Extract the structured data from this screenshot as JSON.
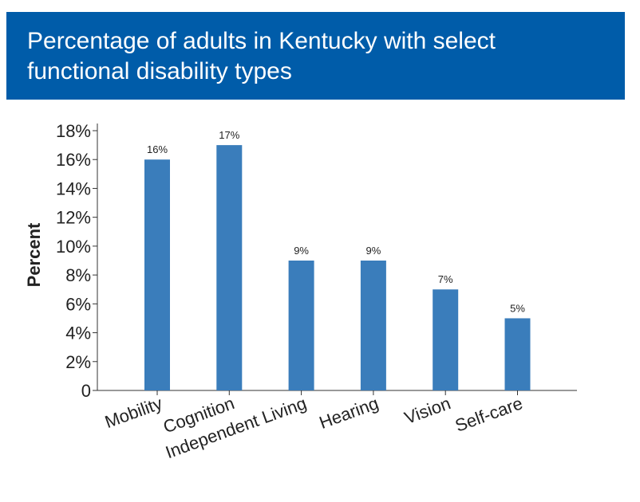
{
  "chart_data": {
    "type": "bar",
    "title": "Percentage of adults in Kentucky with select functional disability types",
    "y_label": "Percent",
    "categories": [
      "Mobility",
      "Cognition",
      "Independent Living",
      "Hearing",
      "Vision",
      "Self-care"
    ],
    "values": [
      16,
      17,
      9,
      9,
      7,
      5
    ],
    "value_labels": [
      "16%",
      "17%",
      "9%",
      "9%",
      "7%",
      "5%"
    ],
    "color": "#3a7dbb",
    "ylim": [
      0,
      18
    ],
    "yticks": [
      0,
      {
        "value": 2,
        "label": "2%"
      },
      {
        "value": 4,
        "label": "4%"
      },
      {
        "value": 6,
        "label": "6%"
      },
      {
        "value": 8,
        "label": "8%"
      },
      {
        "value": 10,
        "label": "10%"
      },
      {
        "value": 12,
        "label": "12%"
      },
      {
        "value": 14,
        "label": "14%"
      },
      {
        "value": 16,
        "label": "16%"
      },
      {
        "value": 18,
        "label": "18%"
      }
    ],
    "grid": false
  }
}
